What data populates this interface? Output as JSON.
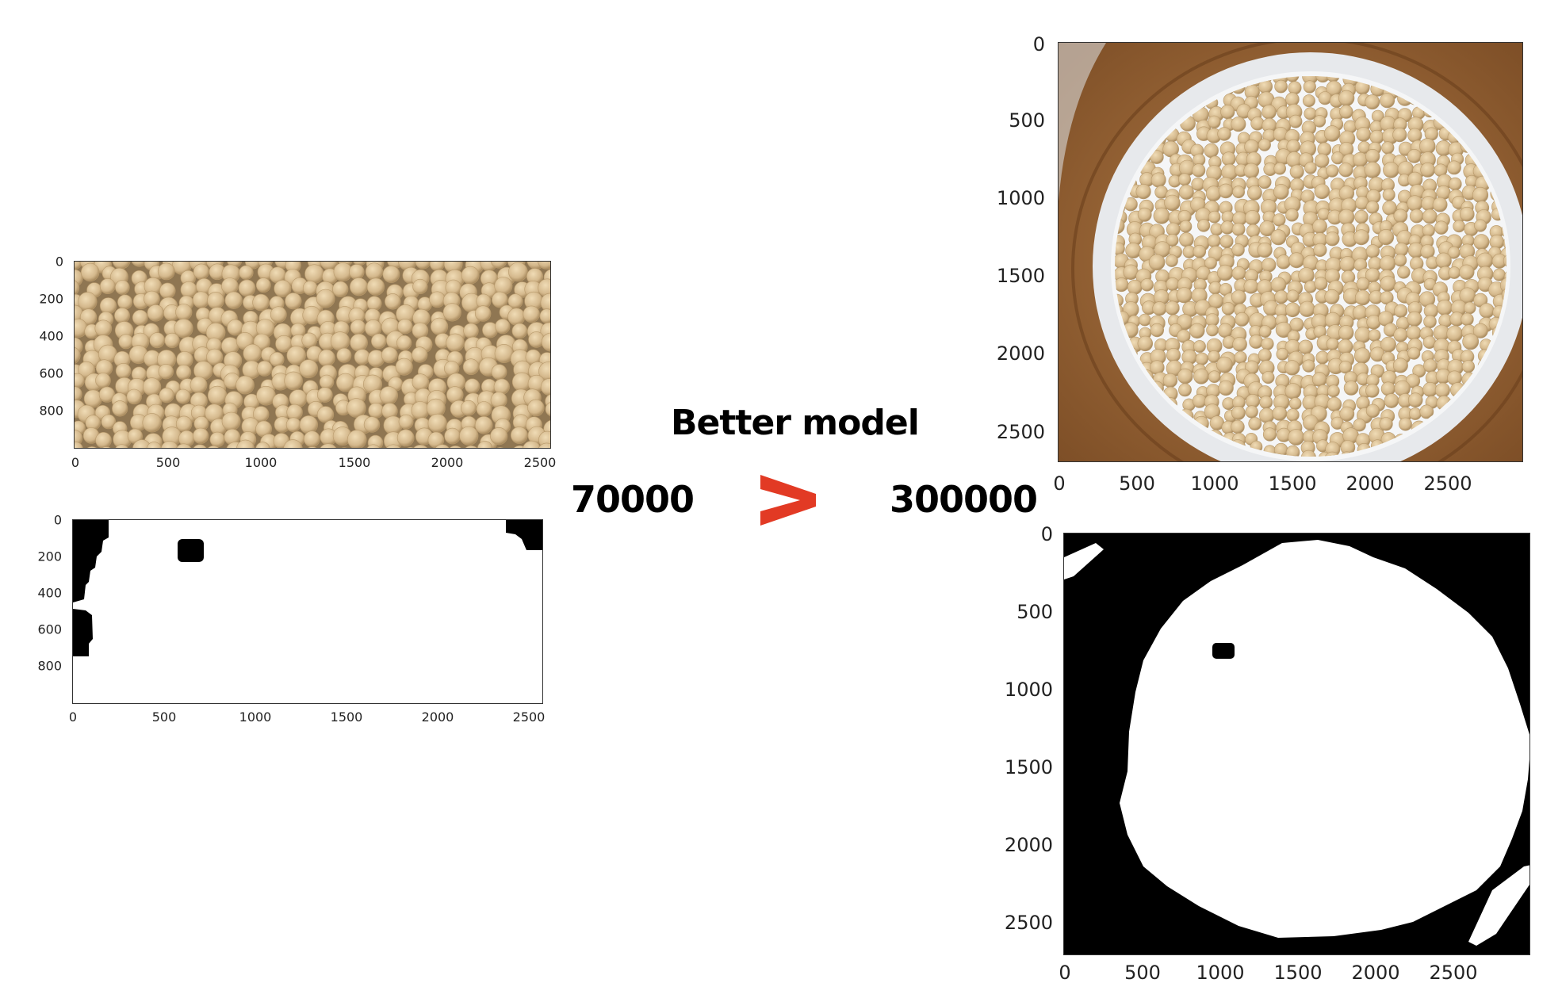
{
  "plots": {
    "top_left": {
      "y_ticks": [
        "0",
        "200",
        "400",
        "600",
        "800"
      ],
      "x_ticks": [
        "0",
        "500",
        "1000",
        "1500",
        "2000",
        "2500"
      ]
    },
    "bottom_left": {
      "y_ticks": [
        "0",
        "200",
        "400",
        "600",
        "800"
      ],
      "x_ticks": [
        "0",
        "500",
        "1000",
        "1500",
        "2000",
        "2500"
      ]
    },
    "top_right": {
      "y_ticks": [
        "0",
        "500",
        "1000",
        "1500",
        "2000",
        "2500"
      ],
      "x_ticks": [
        "0",
        "500",
        "1000",
        "1500",
        "2000",
        "2500"
      ]
    },
    "bottom_right": {
      "y_ticks": [
        "0",
        "500",
        "1000",
        "1500",
        "2000",
        "2500"
      ],
      "x_ticks": [
        "0",
        "500",
        "1000",
        "1500",
        "2000",
        "2500"
      ]
    }
  },
  "comparison": {
    "title": "Better model",
    "left_value": "70000",
    "operator": ">",
    "right_value": "300000",
    "operator_color": "#e23a24"
  },
  "colors": {
    "bean": "#d8bf94",
    "bean_shadow": "#b89a6c",
    "wood": "#9a6535",
    "bowl": "#eef0f2"
  }
}
